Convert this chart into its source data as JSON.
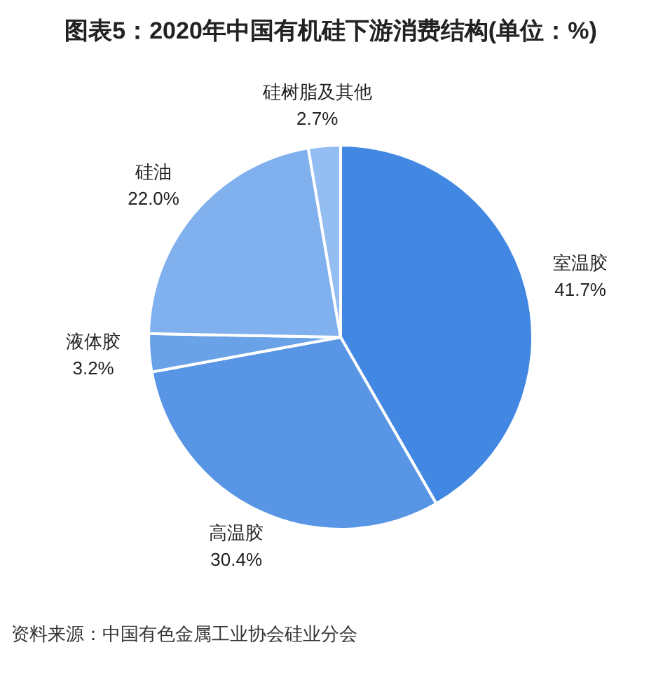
{
  "chart_data": {
    "type": "pie",
    "title": "图表5：2020年中国有机硅下游消费结构(单位：%)",
    "categories": [
      "室温胶",
      "高温胶",
      "液体胶",
      "硅油",
      "硅树脂及其他"
    ],
    "values": [
      41.7,
      30.4,
      3.2,
      22.0,
      2.7
    ],
    "colors": [
      "#4288e2",
      "#5896e5",
      "#6aa2e8",
      "#80b0ee",
      "#94bdf2"
    ],
    "value_labels": [
      "41.7%",
      "30.4%",
      "3.2%",
      "22.0%",
      "2.7%"
    ],
    "annotations": [
      "资料来源：中国有色金属工业协会硅业分会"
    ]
  }
}
